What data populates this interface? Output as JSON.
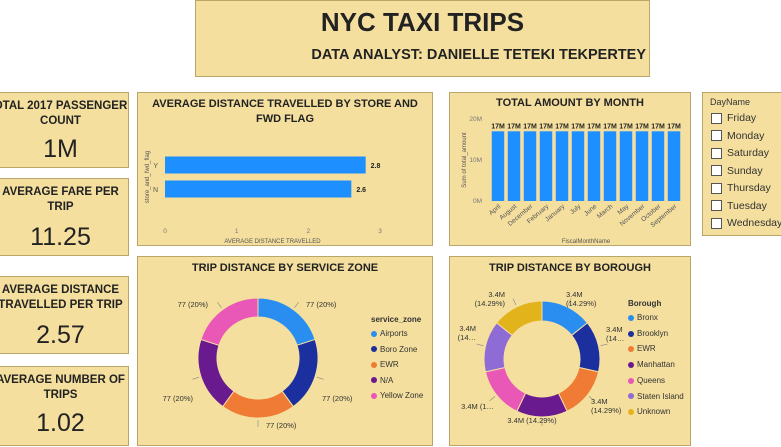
{
  "header": {
    "title": "NYC TAXI TRIPS",
    "subtitle": "DATA ANALYST: DANIELLE TETEKI TEKPERTEY"
  },
  "kpis": [
    {
      "label": "OTAL 2017 PASSENGER COUNT",
      "value": "1M"
    },
    {
      "label": "AVERAGE FARE PER TRIP",
      "value": "11.25"
    },
    {
      "label": "AVERAGE DISTANCE TRAVELLED PER TRIP",
      "value": "2.57"
    },
    {
      "label": "AVERAGE NUMBER OF TRIPS",
      "value": "1.02"
    }
  ],
  "slicer": {
    "title": "DayName",
    "items": [
      "Friday",
      "Monday",
      "Saturday",
      "Sunday",
      "Thursday",
      "Tuesday",
      "Wednesday"
    ]
  },
  "colors": {
    "bar": "#1e8fff",
    "card": "#f4df9e"
  },
  "chart_data": [
    {
      "type": "bar",
      "orientation": "horizontal",
      "title": "AVERAGE DISTANCE TRAVELLED BY STORE AND FWD FLAG",
      "xlabel": "AVERAGE DISTANCE TRAVELLED",
      "ylabel": "store_and_fwd_flag",
      "categories": [
        "Y",
        "N"
      ],
      "values": [
        2.8,
        2.6
      ],
      "data_labels": [
        "2.8",
        "2.6"
      ],
      "xlim": [
        0,
        3
      ],
      "xticks": [
        "0",
        "1",
        "2",
        "3"
      ]
    },
    {
      "type": "bar",
      "title": "TOTAL AMOUNT BY MONTH",
      "xlabel": "FiscalMonthName",
      "ylabel": "Sum of total_amount",
      "categories": [
        "April",
        "August",
        "December",
        "February",
        "January",
        "July",
        "June",
        "March",
        "May",
        "November",
        "October",
        "September"
      ],
      "values": [
        17,
        17,
        17,
        17,
        17,
        17,
        17,
        17,
        17,
        17,
        17,
        17
      ],
      "unit": "M",
      "data_labels": [
        "17M",
        "17M",
        "17M",
        "17M",
        "17M",
        "17M",
        "17M",
        "17M",
        "17M",
        "17M",
        "17M",
        "17M"
      ],
      "ylim": [
        0,
        20
      ],
      "yticks": [
        "0M",
        "10M",
        "20M"
      ]
    },
    {
      "type": "pie",
      "donut": true,
      "title": "TRIP DISTANCE BY SERVICE ZONE",
      "legend_title": "service_zone",
      "labels": [
        "Airports",
        "Boro Zone",
        "EWR",
        "N/A",
        "Yellow Zone"
      ],
      "values": [
        77,
        77,
        77,
        77,
        77
      ],
      "percents": [
        20,
        20,
        20,
        20,
        20
      ],
      "slice_labels": [
        "77 (20%)",
        "77 (20%)",
        "77 (20%)",
        "77 (20%)",
        "77 (20%)"
      ],
      "colors": [
        "#2a8ef0",
        "#1c2f9e",
        "#f07b35",
        "#6a1a8f",
        "#e957b7"
      ]
    },
    {
      "type": "pie",
      "donut": true,
      "title": "TRIP DISTANCE BY BOROUGH",
      "legend_title": "Borough",
      "labels": [
        "Bronx",
        "Brooklyn",
        "EWR",
        "Manhattan",
        "Queens",
        "Staten Island",
        "Unknown"
      ],
      "values": [
        3.4,
        3.4,
        3.4,
        3.4,
        3.4,
        3.4,
        3.4
      ],
      "percents": [
        14.29,
        14.29,
        14.29,
        14.29,
        14.29,
        14.29,
        14.29
      ],
      "slice_labels": [
        "3.4M (14.29%)",
        "3.4M (14…",
        "3.4M (14.29%)",
        "3.4M (14.29%)",
        "3.4M (1…",
        "3.4M (14…",
        "3.4M (14.29%)"
      ],
      "colors": [
        "#2a8ef0",
        "#1c2f9e",
        "#f07b35",
        "#6a1a8f",
        "#e957b7",
        "#8f6bd6",
        "#e3b31c"
      ]
    }
  ]
}
